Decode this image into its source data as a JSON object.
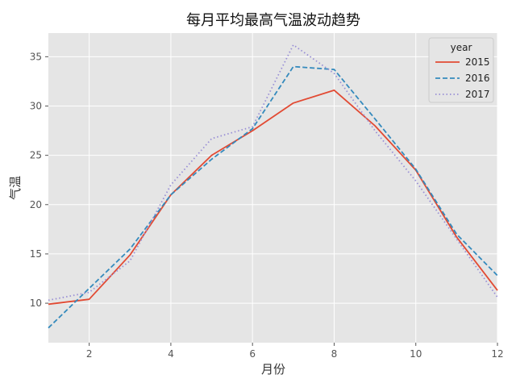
{
  "chart_data": {
    "type": "line",
    "title": "每月平均最高气温波动趋势",
    "xlabel": "月份",
    "ylabel": "气温",
    "x": [
      1,
      2,
      3,
      4,
      5,
      6,
      7,
      8,
      9,
      10,
      11,
      12
    ],
    "xlim": [
      1,
      12
    ],
    "ylim": [
      6,
      37.4
    ],
    "x_ticks": [
      2,
      4,
      6,
      8,
      10,
      12
    ],
    "y_ticks": [
      10,
      15,
      20,
      25,
      30,
      35
    ],
    "grid": true,
    "legend": {
      "title": "year",
      "placement": "top-right"
    },
    "series": [
      {
        "name": "2015",
        "color": "#e24a33",
        "style": "solid",
        "values": [
          9.9,
          10.4,
          14.9,
          21.0,
          25.0,
          27.5,
          30.3,
          31.6,
          28.0,
          23.5,
          16.7,
          11.3
        ]
      },
      {
        "name": "2016",
        "color": "#348abd",
        "style": "dashed",
        "values": [
          7.5,
          11.5,
          15.5,
          21.0,
          24.6,
          27.7,
          34.0,
          33.7,
          28.7,
          23.6,
          17.0,
          12.8
        ]
      },
      {
        "name": "2017",
        "color": "#988ed5",
        "style": "dotted",
        "values": [
          10.3,
          11.1,
          14.3,
          22.0,
          26.7,
          27.9,
          36.2,
          33.3,
          27.5,
          22.4,
          16.5,
          10.6
        ]
      }
    ]
  }
}
